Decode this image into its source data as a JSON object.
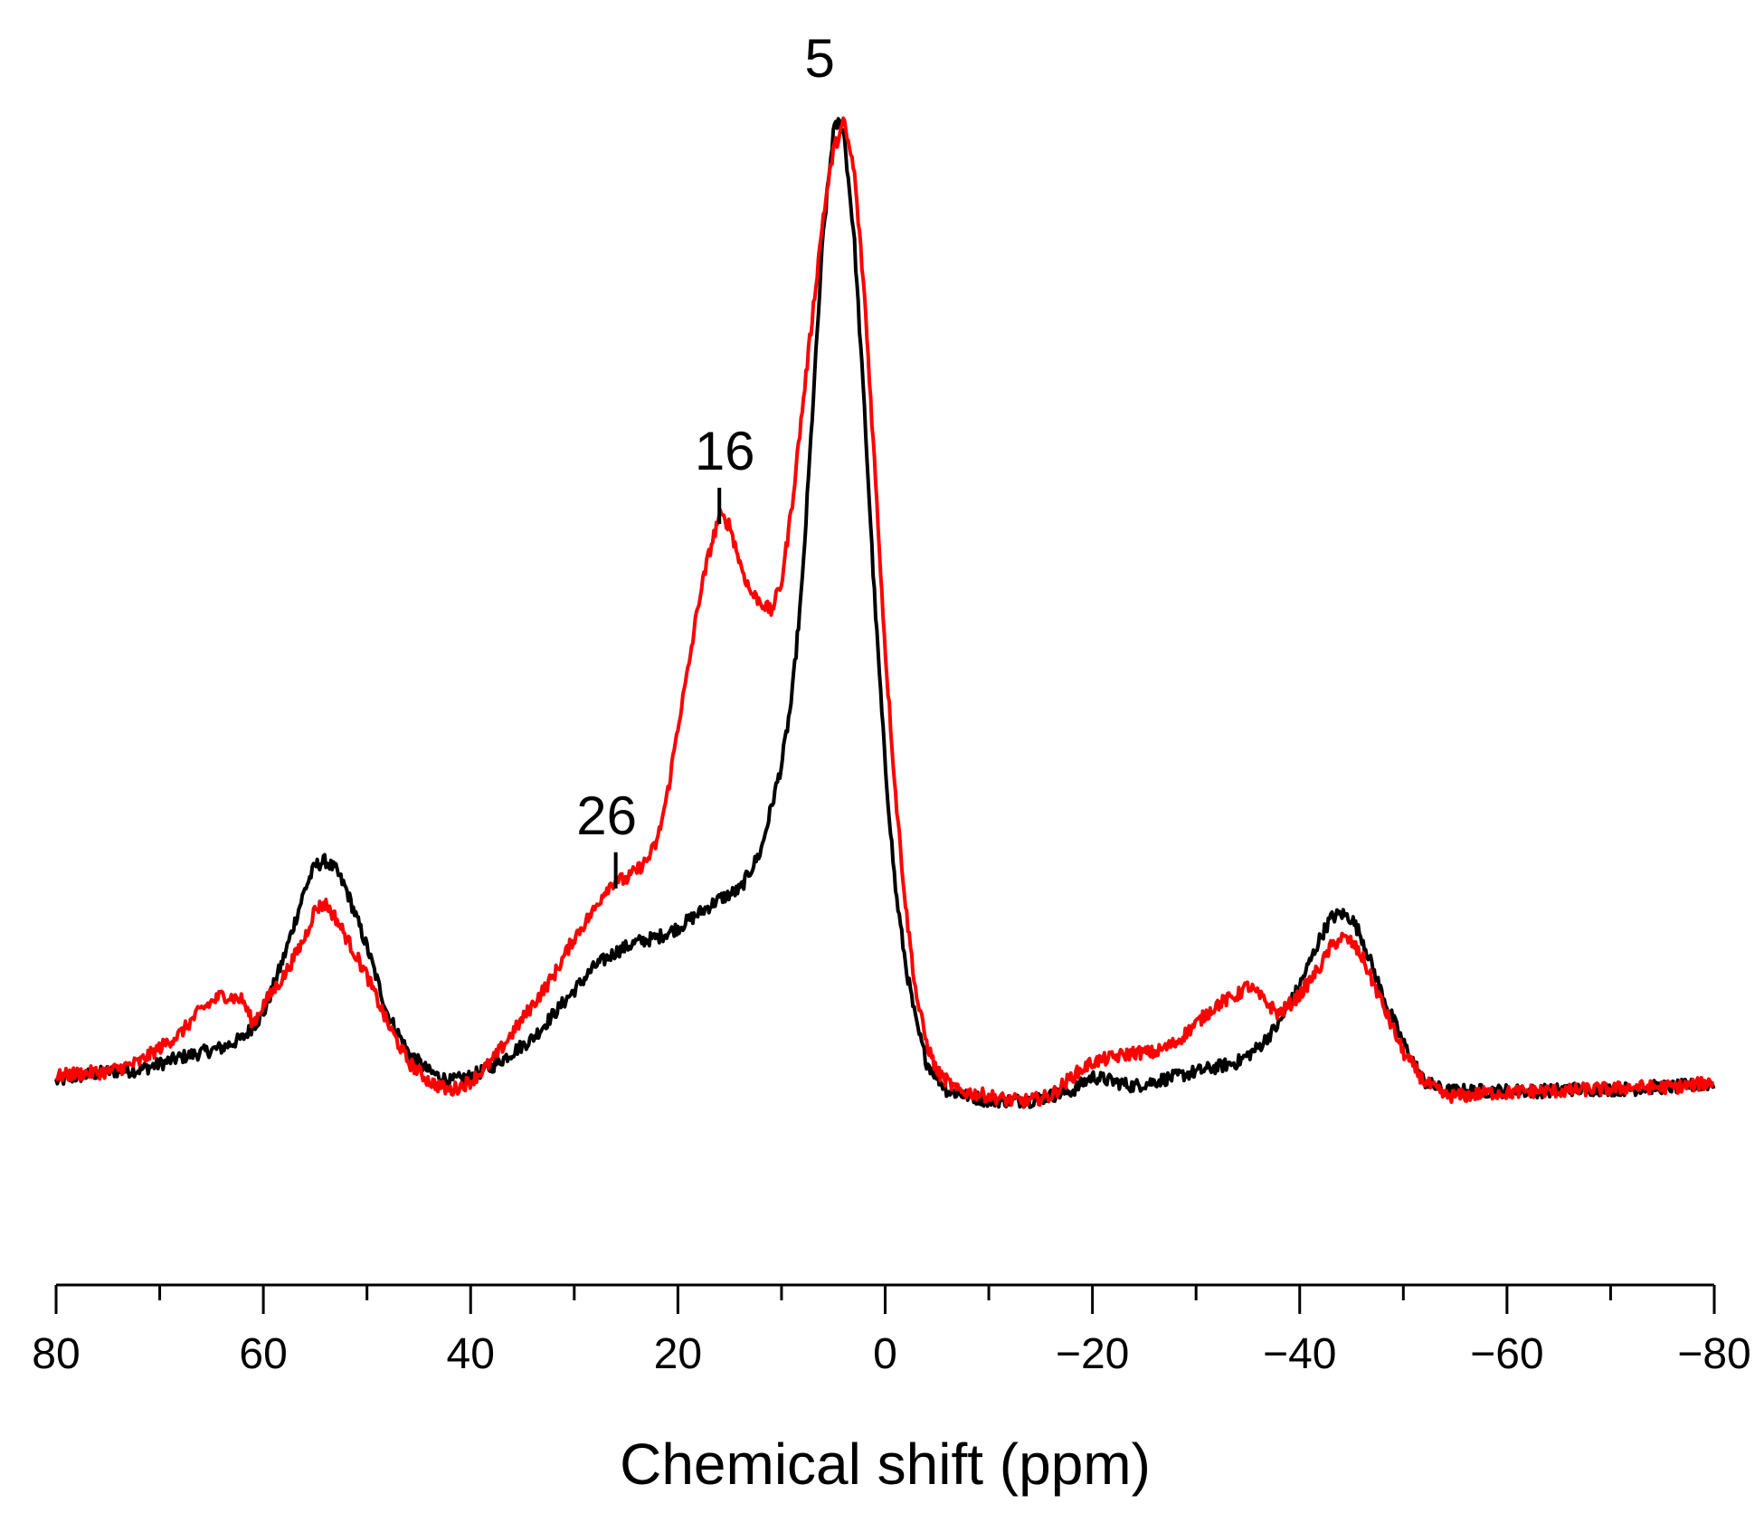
{
  "chart_data": {
    "type": "line",
    "title": "",
    "xlabel": "Chemical shift (ppm)",
    "ylabel": "",
    "xlim": [
      80,
      -80
    ],
    "ylim": [
      -0.2,
      1.05
    ],
    "x_reversed": true,
    "x_ticks": [
      80,
      60,
      40,
      20,
      0,
      -20,
      -40,
      -60,
      -80
    ],
    "x_tick_labels": [
      "80",
      "60",
      "40",
      "20",
      "0",
      "−20",
      "−40",
      "−60",
      "−80"
    ],
    "minor_tick_step": 10,
    "grid": false,
    "legend": "none",
    "peak_annotations": [
      {
        "label": "5",
        "x": 5,
        "y": 1.0
      },
      {
        "label": "16",
        "x": 16,
        "y": 0.6
      },
      {
        "label": "26",
        "x": 26,
        "y": 0.22
      }
    ],
    "series": [
      {
        "name": "black spectrum",
        "color": "#000000",
        "points": [
          [
            80,
            0.0
          ],
          [
            78,
            0.005
          ],
          [
            75,
            0.01
          ],
          [
            72,
            0.012
          ],
          [
            70,
            0.018
          ],
          [
            68,
            0.025
          ],
          [
            66,
            0.03
          ],
          [
            64,
            0.035
          ],
          [
            62,
            0.045
          ],
          [
            60,
            0.07
          ],
          [
            58,
            0.13
          ],
          [
            56,
            0.2
          ],
          [
            55,
            0.225
          ],
          [
            54,
            0.23
          ],
          [
            53,
            0.22
          ],
          [
            52,
            0.2
          ],
          [
            50,
            0.14
          ],
          [
            48,
            0.07
          ],
          [
            46,
            0.03
          ],
          [
            44,
            0.01
          ],
          [
            42,
            0.0
          ],
          [
            40,
            0.005
          ],
          [
            38,
            0.015
          ],
          [
            36,
            0.03
          ],
          [
            34,
            0.045
          ],
          [
            32,
            0.07
          ],
          [
            30,
            0.095
          ],
          [
            28,
            0.12
          ],
          [
            26,
            0.135
          ],
          [
            24,
            0.145
          ],
          [
            22,
            0.15
          ],
          [
            20,
            0.16
          ],
          [
            18,
            0.175
          ],
          [
            16,
            0.19
          ],
          [
            14,
            0.2
          ],
          [
            12,
            0.24
          ],
          [
            10,
            0.33
          ],
          [
            9,
            0.4
          ],
          [
            8,
            0.52
          ],
          [
            7,
            0.7
          ],
          [
            6,
            0.88
          ],
          [
            5,
            0.99
          ],
          [
            4.5,
            1.0
          ],
          [
            4,
            0.99
          ],
          [
            3,
            0.88
          ],
          [
            2,
            0.7
          ],
          [
            1,
            0.5
          ],
          [
            0,
            0.33
          ],
          [
            -1,
            0.2
          ],
          [
            -2,
            0.12
          ],
          [
            -3,
            0.06
          ],
          [
            -4,
            0.02
          ],
          [
            -6,
            -0.01
          ],
          [
            -8,
            -0.015
          ],
          [
            -10,
            -0.02
          ],
          [
            -12,
            -0.02
          ],
          [
            -14,
            -0.02
          ],
          [
            -16,
            -0.015
          ],
          [
            -18,
            -0.01
          ],
          [
            -20,
            0.005
          ],
          [
            -22,
            0.0
          ],
          [
            -24,
            -0.005
          ],
          [
            -26,
            0.0
          ],
          [
            -28,
            0.005
          ],
          [
            -30,
            0.01
          ],
          [
            -32,
            0.015
          ],
          [
            -34,
            0.02
          ],
          [
            -36,
            0.035
          ],
          [
            -38,
            0.06
          ],
          [
            -40,
            0.1
          ],
          [
            -42,
            0.15
          ],
          [
            -43,
            0.17
          ],
          [
            -44,
            0.175
          ],
          [
            -45,
            0.17
          ],
          [
            -46,
            0.15
          ],
          [
            -48,
            0.09
          ],
          [
            -50,
            0.04
          ],
          [
            -52,
            0.0
          ],
          [
            -54,
            -0.01
          ],
          [
            -56,
            -0.01
          ],
          [
            -58,
            -0.01
          ],
          [
            -60,
            -0.01
          ],
          [
            -62,
            -0.01
          ],
          [
            -64,
            -0.01
          ],
          [
            -66,
            -0.008
          ],
          [
            -68,
            -0.008
          ],
          [
            -70,
            -0.008
          ],
          [
            -72,
            -0.008
          ],
          [
            -74,
            -0.006
          ],
          [
            -76,
            -0.006
          ],
          [
            -78,
            -0.004
          ],
          [
            -80,
            -0.002
          ]
        ]
      },
      {
        "name": "red spectrum",
        "color": "#ff0000",
        "points": [
          [
            80,
            0.005
          ],
          [
            78,
            0.008
          ],
          [
            75,
            0.01
          ],
          [
            72,
            0.02
          ],
          [
            70,
            0.035
          ],
          [
            68,
            0.05
          ],
          [
            66,
            0.075
          ],
          [
            64,
            0.09
          ],
          [
            62,
            0.085
          ],
          [
            61,
            0.06
          ],
          [
            60,
            0.08
          ],
          [
            58,
            0.11
          ],
          [
            56,
            0.15
          ],
          [
            55,
            0.18
          ],
          [
            54,
            0.185
          ],
          [
            53,
            0.17
          ],
          [
            52,
            0.15
          ],
          [
            50,
            0.11
          ],
          [
            48,
            0.06
          ],
          [
            46,
            0.02
          ],
          [
            44,
            0.0
          ],
          [
            42,
            -0.01
          ],
          [
            40,
            0.0
          ],
          [
            38,
            0.02
          ],
          [
            36,
            0.05
          ],
          [
            34,
            0.08
          ],
          [
            32,
            0.11
          ],
          [
            30,
            0.15
          ],
          [
            28,
            0.18
          ],
          [
            27,
            0.2
          ],
          [
            26,
            0.21
          ],
          [
            25,
            0.21
          ],
          [
            24,
            0.22
          ],
          [
            23,
            0.23
          ],
          [
            22,
            0.25
          ],
          [
            21,
            0.3
          ],
          [
            20,
            0.37
          ],
          [
            19,
            0.43
          ],
          [
            18,
            0.5
          ],
          [
            17,
            0.55
          ],
          [
            16,
            0.59
          ],
          [
            15,
            0.58
          ],
          [
            14,
            0.54
          ],
          [
            13,
            0.51
          ],
          [
            12,
            0.5
          ],
          [
            11,
            0.49
          ],
          [
            10,
            0.52
          ],
          [
            9,
            0.6
          ],
          [
            8,
            0.7
          ],
          [
            7,
            0.8
          ],
          [
            6,
            0.9
          ],
          [
            5,
            0.97
          ],
          [
            4,
            1.0
          ],
          [
            3,
            0.95
          ],
          [
            2,
            0.82
          ],
          [
            1,
            0.64
          ],
          [
            0,
            0.45
          ],
          [
            -1,
            0.3
          ],
          [
            -2,
            0.18
          ],
          [
            -3,
            0.09
          ],
          [
            -4,
            0.04
          ],
          [
            -5,
            0.01
          ],
          [
            -7,
            -0.01
          ],
          [
            -10,
            -0.015
          ],
          [
            -12,
            -0.02
          ],
          [
            -14,
            -0.02
          ],
          [
            -16,
            -0.015
          ],
          [
            -18,
            0.005
          ],
          [
            -20,
            0.02
          ],
          [
            -22,
            0.025
          ],
          [
            -24,
            0.03
          ],
          [
            -26,
            0.03
          ],
          [
            -28,
            0.04
          ],
          [
            -30,
            0.06
          ],
          [
            -32,
            0.08
          ],
          [
            -34,
            0.09
          ],
          [
            -35,
            0.1
          ],
          [
            -36,
            0.09
          ],
          [
            -38,
            0.07
          ],
          [
            -40,
            0.09
          ],
          [
            -42,
            0.12
          ],
          [
            -43,
            0.14
          ],
          [
            -44,
            0.15
          ],
          [
            -45,
            0.145
          ],
          [
            -46,
            0.13
          ],
          [
            -48,
            0.08
          ],
          [
            -50,
            0.03
          ],
          [
            -52,
            0.0
          ],
          [
            -54,
            -0.015
          ],
          [
            -56,
            -0.015
          ],
          [
            -58,
            -0.012
          ],
          [
            -60,
            -0.012
          ],
          [
            -62,
            -0.01
          ],
          [
            -64,
            -0.01
          ],
          [
            -66,
            -0.01
          ],
          [
            -68,
            -0.008
          ],
          [
            -70,
            -0.008
          ],
          [
            -72,
            -0.006
          ],
          [
            -74,
            -0.006
          ],
          [
            -76,
            -0.006
          ],
          [
            -78,
            -0.004
          ],
          [
            -80,
            0.0
          ]
        ]
      }
    ]
  }
}
